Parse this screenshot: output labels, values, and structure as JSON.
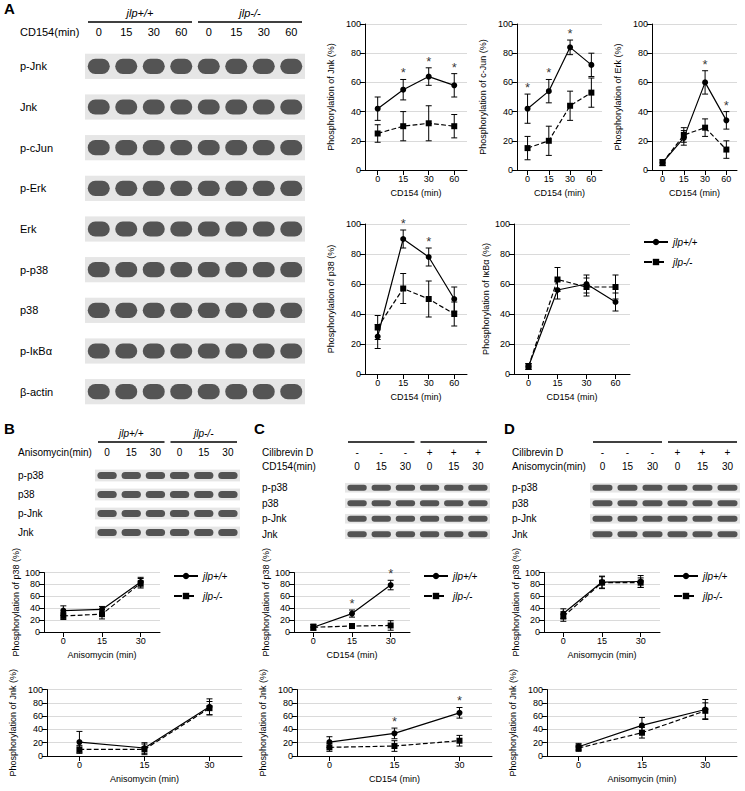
{
  "blots": [
    {
      "label": "A",
      "groups": [
        "jlp+/+",
        "jlp-/-"
      ],
      "lane_rows": [
        {
          "label": "CD154(min)",
          "values": [
            "0",
            "15",
            "30",
            "60",
            "0",
            "15",
            "30",
            "60"
          ]
        }
      ],
      "bands": [
        "p-Jnk",
        "Jnk",
        "p-cJun",
        "p-Erk",
        "Erk",
        "p-p38",
        "p38",
        "p-IκBα",
        "β-actin"
      ]
    },
    {
      "label": "B",
      "groups": [
        "jlp+/+",
        "jlp-/-"
      ],
      "lane_rows": [
        {
          "label": "Anisomycin(min)",
          "values": [
            "0",
            "15",
            "30",
            "0",
            "15",
            "30"
          ]
        }
      ],
      "bands": [
        "p-p38",
        "p38",
        "p-Jnk",
        "Jnk"
      ]
    },
    {
      "label": "C",
      "groups": [],
      "lane_rows": [
        {
          "label": "Cilibrevin D",
          "values": [
            "-",
            "-",
            "-",
            "+",
            "+",
            "+"
          ]
        },
        {
          "label": "CD154(min)",
          "values": [
            "0",
            "15",
            "30",
            "0",
            "15",
            "30"
          ]
        }
      ],
      "bands": [
        "p-p38",
        "p38",
        "p-Jnk",
        "Jnk"
      ]
    },
    {
      "label": "D",
      "groups": [],
      "lane_rows": [
        {
          "label": "Cilibrevin D",
          "values": [
            "-",
            "-",
            "-",
            "+",
            "+",
            "+"
          ]
        },
        {
          "label": "Anisomycin(min)",
          "values": [
            "0",
            "15",
            "30",
            "0",
            "15",
            "30"
          ]
        }
      ],
      "bands": [
        "p-p38",
        "p38",
        "p-Jnk",
        "Jnk"
      ]
    }
  ],
  "chart_data": [
    {
      "type": "line",
      "xlabel": "CD154 (min)",
      "ylabel": "Phosphorylation of Jnk (%)",
      "categories": [
        "0",
        "15",
        "30",
        "60"
      ],
      "ylim": [
        0,
        100
      ],
      "yticks": [
        0,
        20,
        40,
        60,
        80,
        100
      ],
      "grid": true,
      "series": [
        {
          "name": "jlp+/+",
          "color": "#000000",
          "marker": "circle",
          "line_style": "solid",
          "values": [
            42,
            55,
            64,
            58
          ],
          "errors": [
            8,
            7,
            6,
            8
          ]
        },
        {
          "name": "jlp-/-",
          "color": "#000000",
          "marker": "square",
          "line_style": "dashed",
          "values": [
            25,
            30,
            32,
            30
          ],
          "errors": [
            6,
            10,
            12,
            8
          ]
        }
      ],
      "annotations": [
        {
          "x": "15",
          "text": "*"
        },
        {
          "x": "30",
          "text": "*"
        },
        {
          "x": "60",
          "text": "*"
        }
      ]
    },
    {
      "type": "line",
      "xlabel": "CD154 (min)",
      "ylabel": "Phosphorylation of c-Jun (%)",
      "categories": [
        "0",
        "15",
        "30",
        "60"
      ],
      "ylim": [
        0,
        100
      ],
      "yticks": [
        0,
        20,
        40,
        60,
        80,
        100
      ],
      "grid": true,
      "series": [
        {
          "name": "jlp+/+",
          "color": "#000000",
          "marker": "circle",
          "line_style": "solid",
          "values": [
            42,
            54,
            84,
            72
          ],
          "errors": [
            10,
            8,
            5,
            8
          ]
        },
        {
          "name": "jlp-/-",
          "color": "#000000",
          "marker": "square",
          "line_style": "dashed",
          "values": [
            15,
            20,
            44,
            53
          ],
          "errors": [
            8,
            10,
            10,
            10
          ]
        }
      ],
      "annotations": [
        {
          "x": "0",
          "text": "*"
        },
        {
          "x": "15",
          "text": "*"
        },
        {
          "x": "30",
          "text": "*"
        }
      ]
    },
    {
      "type": "line",
      "xlabel": "CD154 (min)",
      "ylabel": "Phosphorylation of Erk (%)",
      "categories": [
        "0",
        "15",
        "30",
        "60"
      ],
      "ylim": [
        0,
        100
      ],
      "yticks": [
        0,
        20,
        40,
        60,
        80,
        100
      ],
      "grid": true,
      "series": [
        {
          "name": "jlp+/+",
          "color": "#000000",
          "marker": "circle",
          "line_style": "solid",
          "values": [
            5,
            22,
            60,
            34
          ],
          "errors": [
            2,
            5,
            8,
            6
          ]
        },
        {
          "name": "jlp-/-",
          "color": "#000000",
          "marker": "square",
          "line_style": "dashed",
          "values": [
            5,
            24,
            29,
            14
          ],
          "errors": [
            2,
            5,
            6,
            6
          ]
        }
      ],
      "annotations": [
        {
          "x": "30",
          "text": "*"
        },
        {
          "x": "60",
          "text": "*"
        }
      ]
    },
    {
      "type": "line",
      "xlabel": "CD154 (min)",
      "ylabel": "Phosphorylation of p38 (%)",
      "categories": [
        "0",
        "15",
        "30",
        "60"
      ],
      "ylim": [
        0,
        100
      ],
      "yticks": [
        0,
        20,
        40,
        60,
        80,
        100
      ],
      "grid": true,
      "series": [
        {
          "name": "jlp+/+",
          "color": "#000000",
          "marker": "circle",
          "line_style": "solid",
          "values": [
            25,
            90,
            78,
            50
          ],
          "errors": [
            8,
            6,
            6,
            8
          ]
        },
        {
          "name": "jlp-/-",
          "color": "#000000",
          "marker": "square",
          "line_style": "dashed",
          "values": [
            31,
            57,
            50,
            40
          ],
          "errors": [
            8,
            10,
            12,
            8
          ]
        }
      ],
      "annotations": [
        {
          "x": "15",
          "text": "*"
        },
        {
          "x": "30",
          "text": "*"
        }
      ]
    },
    {
      "type": "line",
      "xlabel": "CD154 (min)",
      "ylabel": "Phosphorylation of IκBα (%)",
      "categories": [
        "0",
        "15",
        "30",
        "60"
      ],
      "ylim": [
        0,
        100
      ],
      "yticks": [
        0,
        20,
        40,
        60,
        80,
        100
      ],
      "grid": true,
      "legend": "right",
      "series": [
        {
          "name": "jlp+/+",
          "color": "#000000",
          "marker": "circle",
          "line_style": "solid",
          "values": [
            5,
            56,
            60,
            48
          ],
          "errors": [
            2,
            6,
            6,
            6
          ]
        },
        {
          "name": "jlp-/-",
          "color": "#000000",
          "marker": "square",
          "line_style": "dashed",
          "values": [
            5,
            63,
            58,
            58
          ],
          "errors": [
            2,
            8,
            6,
            8
          ]
        }
      ],
      "annotations": []
    },
    {
      "type": "line",
      "xlabel": "Anisomycin (min)",
      "ylabel": "Phosphorylation of p38 (%)",
      "categories": [
        "0",
        "15",
        "30"
      ],
      "ylim": [
        0,
        100
      ],
      "yticks": [
        0,
        20,
        40,
        60,
        80,
        100
      ],
      "grid": true,
      "legend": "right",
      "series": [
        {
          "name": "jlp+/+",
          "color": "#000000",
          "marker": "circle",
          "line_style": "solid",
          "values": [
            36,
            38,
            84
          ],
          "errors": [
            8,
            5,
            8
          ]
        },
        {
          "name": "jlp-/-",
          "color": "#000000",
          "marker": "square",
          "line_style": "dashed",
          "values": [
            27,
            30,
            82
          ],
          "errors": [
            6,
            8,
            8
          ]
        }
      ],
      "annotations": []
    },
    {
      "type": "line",
      "xlabel": "Anisomycin (min)",
      "ylabel": "Phosphorylation of Jnk (%)",
      "categories": [
        "0",
        "15",
        "30"
      ],
      "ylim": [
        0,
        100
      ],
      "yticks": [
        0,
        20,
        40,
        60,
        80,
        100
      ],
      "grid": true,
      "series": [
        {
          "name": "jlp+/+",
          "color": "#000000",
          "marker": "circle",
          "line_style": "solid",
          "values": [
            21,
            12,
            74
          ],
          "errors": [
            16,
            8,
            12
          ]
        },
        {
          "name": "jlp-/-",
          "color": "#000000",
          "marker": "square",
          "line_style": "dashed",
          "values": [
            10,
            10,
            72
          ],
          "errors": [
            6,
            8,
            10
          ]
        }
      ],
      "annotations": []
    },
    {
      "type": "line",
      "xlabel": "CD154 (min)",
      "ylabel": "Phosphorylation of p38 (%)",
      "categories": [
        "0",
        "15",
        "30"
      ],
      "ylim": [
        0,
        100
      ],
      "yticks": [
        0,
        20,
        40,
        60,
        80,
        100
      ],
      "grid": true,
      "legend": "right",
      "series": [
        {
          "name": "jlp+/+",
          "color": "#000000",
          "marker": "circle",
          "line_style": "solid",
          "values": [
            8,
            31,
            79
          ],
          "errors": [
            5,
            6,
            8
          ]
        },
        {
          "name": "jlp-/-",
          "color": "#000000",
          "marker": "square",
          "line_style": "dashed",
          "values": [
            8,
            10,
            11
          ],
          "errors": [
            5,
            4,
            8
          ]
        }
      ],
      "annotations": [
        {
          "x": "15",
          "text": "*"
        },
        {
          "x": "30",
          "text": "*"
        }
      ]
    },
    {
      "type": "line",
      "xlabel": "CD154 (min)",
      "ylabel": "Phosphorylation of Jnk (%)",
      "categories": [
        "0",
        "15",
        "30"
      ],
      "ylim": [
        0,
        100
      ],
      "yticks": [
        0,
        20,
        40,
        60,
        80,
        100
      ],
      "grid": true,
      "series": [
        {
          "name": "jlp+/+",
          "color": "#000000",
          "marker": "circle",
          "line_style": "solid",
          "values": [
            21,
            34,
            65
          ],
          "errors": [
            8,
            8,
            8
          ]
        },
        {
          "name": "jlp-/-",
          "color": "#000000",
          "marker": "square",
          "line_style": "dashed",
          "values": [
            13,
            15,
            23
          ],
          "errors": [
            6,
            8,
            8
          ]
        }
      ],
      "annotations": [
        {
          "x": "15",
          "text": "*"
        },
        {
          "x": "30",
          "text": "*"
        }
      ]
    },
    {
      "type": "line",
      "xlabel": "Anisomycin (min)",
      "ylabel": "Phosphorylation of p38 (%)",
      "categories": [
        "0",
        "15",
        "30"
      ],
      "ylim": [
        0,
        100
      ],
      "yticks": [
        0,
        20,
        40,
        60,
        80,
        100
      ],
      "grid": true,
      "legend": "right",
      "series": [
        {
          "name": "jlp+/+",
          "color": "#000000",
          "marker": "circle",
          "line_style": "solid",
          "values": [
            31,
            84,
            85
          ],
          "errors": [
            8,
            10,
            10
          ]
        },
        {
          "name": "jlp-/-",
          "color": "#000000",
          "marker": "square",
          "line_style": "dashed",
          "values": [
            26,
            83,
            83
          ],
          "errors": [
            8,
            10,
            8
          ]
        }
      ],
      "annotations": []
    },
    {
      "type": "line",
      "xlabel": "Anisomycin (min)",
      "ylabel": "Phosphorylation of Jnk (%)",
      "categories": [
        "0",
        "15",
        "30"
      ],
      "ylim": [
        0,
        100
      ],
      "yticks": [
        0,
        20,
        40,
        60,
        80,
        100
      ],
      "grid": true,
      "series": [
        {
          "name": "jlp+/+",
          "color": "#000000",
          "marker": "circle",
          "line_style": "solid",
          "values": [
            14,
            46,
            70
          ],
          "errors": [
            5,
            12,
            15
          ]
        },
        {
          "name": "jlp-/-",
          "color": "#000000",
          "marker": "square",
          "line_style": "dashed",
          "values": [
            12,
            35,
            68
          ],
          "errors": [
            5,
            8,
            12
          ]
        }
      ],
      "annotations": []
    }
  ]
}
